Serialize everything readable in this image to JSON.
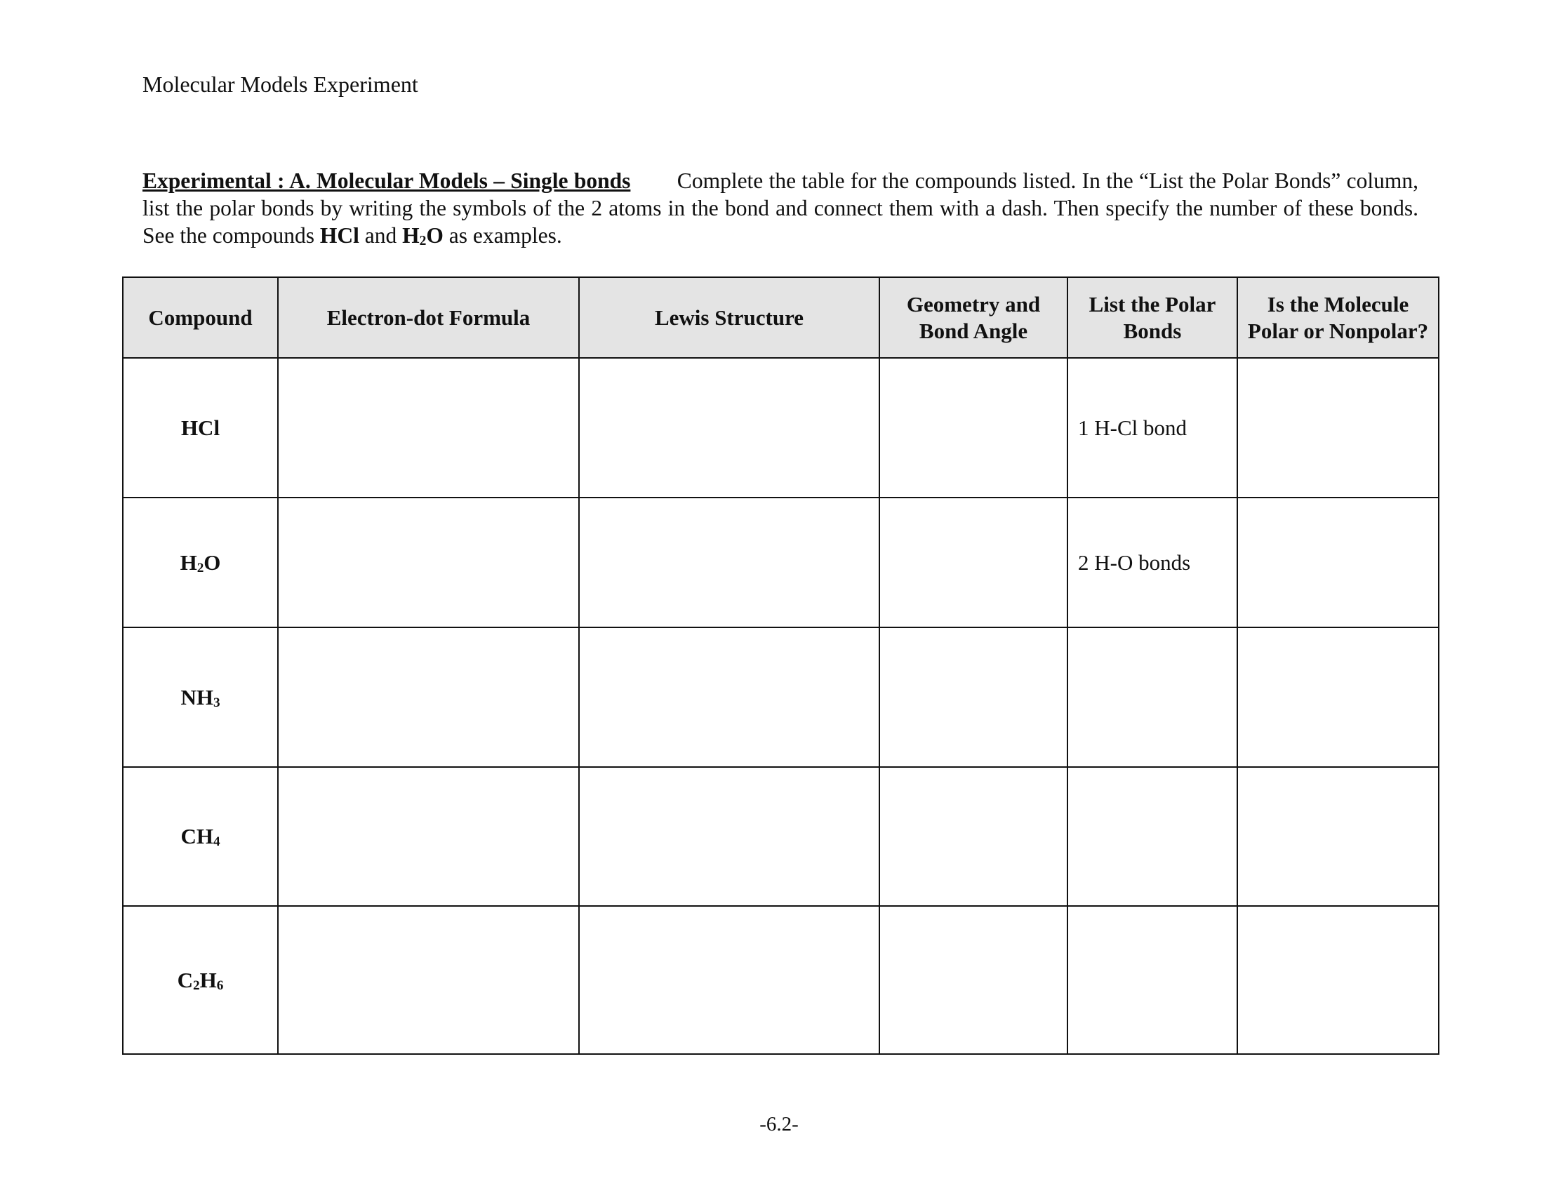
{
  "page_title": "Molecular Models Experiment",
  "intro": [
    {
      "t": "Experimental :  A. Molecular Models – Single bonds",
      "s": "h"
    },
    {
      "t": "        Complete the table for the compounds listed. In the “List the Polar Bonds” column, list the polar bonds by writing the symbols of the 2 atoms in the bond and connect them with a dash. Then specify the number of these bonds. See the compounds ",
      "s": ""
    },
    {
      "t": "HCl",
      "s": "b"
    },
    {
      "t": " and ",
      "s": ""
    },
    {
      "t": "H",
      "s": "b"
    },
    {
      "t": "2",
      "s": "bsub"
    },
    {
      "t": "O",
      "s": "b"
    },
    {
      "t": " as examples.",
      "s": ""
    }
  ],
  "table": {
    "headers": [
      "Compound",
      "Electron-dot Formula",
      "Lewis Structure",
      "Geometry and Bond Angle",
      "List the Polar Bonds",
      "Is the Molecule Polar or Nonpolar?"
    ],
    "header_bg": "#e4e4e4",
    "rows": [
      {
        "compound": [
          [
            "HCl",
            ""
          ]
        ],
        "polar_bonds": "1 H-Cl bond"
      },
      {
        "compound": [
          [
            "H",
            ""
          ],
          [
            "2",
            "sub"
          ],
          [
            "O",
            ""
          ]
        ],
        "polar_bonds": "2 H-O bonds"
      },
      {
        "compound": [
          [
            "NH",
            ""
          ],
          [
            "3",
            "sub"
          ]
        ],
        "polar_bonds": ""
      },
      {
        "compound": [
          [
            "CH",
            ""
          ],
          [
            "4",
            "sub"
          ]
        ],
        "polar_bonds": ""
      },
      {
        "compound": [
          [
            "C",
            ""
          ],
          [
            "2",
            "sub"
          ],
          [
            "H",
            ""
          ],
          [
            "6",
            "sub"
          ]
        ],
        "polar_bonds": ""
      }
    ]
  },
  "page_number": "-6.2-"
}
